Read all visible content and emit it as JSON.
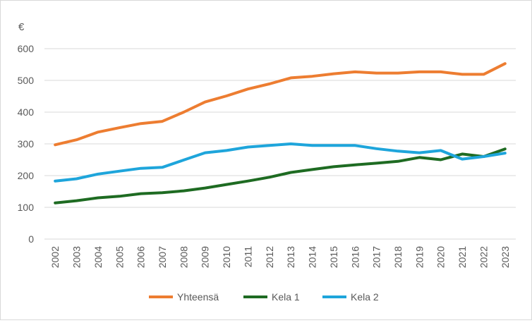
{
  "chart_data": {
    "type": "line",
    "ylabel": "€",
    "ylim": [
      0,
      600
    ],
    "yticks": [
      0,
      100,
      200,
      300,
      400,
      500,
      600
    ],
    "grid": "horizontal",
    "legend_position": "bottom",
    "categories": [
      "2002",
      "2003",
      "2004",
      "2005",
      "2006",
      "2007",
      "2008",
      "2009",
      "2010",
      "2011",
      "2012",
      "2013",
      "2014",
      "2015",
      "2016",
      "2017",
      "2018",
      "2019",
      "2020",
      "2021",
      "2022",
      "2023"
    ],
    "series": [
      {
        "name": "Yhteensä",
        "color": "#ED7D31",
        "values": [
          297,
          313,
          337,
          351,
          364,
          371,
          400,
          432,
          451,
          473,
          489,
          508,
          513,
          521,
          527,
          523,
          523,
          527,
          527,
          519,
          519,
          553
        ]
      },
      {
        "name": "Kela 1",
        "color": "#1E6B22",
        "values": [
          114,
          121,
          130,
          135,
          143,
          146,
          152,
          161,
          172,
          183,
          195,
          210,
          219,
          228,
          234,
          239,
          245,
          257,
          250,
          268,
          260,
          284
        ]
      },
      {
        "name": "Kela 2",
        "color": "#1EA5DB",
        "values": [
          183,
          190,
          205,
          214,
          223,
          226,
          249,
          272,
          279,
          290,
          295,
          300,
          295,
          295,
          295,
          285,
          277,
          272,
          279,
          252,
          260,
          271
        ]
      }
    ]
  }
}
